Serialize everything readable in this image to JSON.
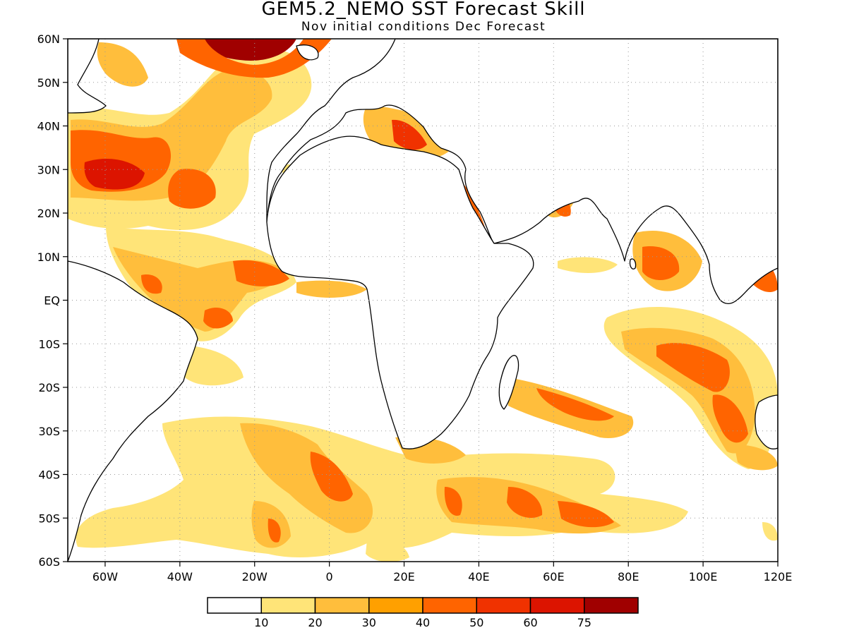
{
  "title": "GEM5.2_NEMO SST Forecast Skill",
  "subtitle": "Nov initial conditions  Dec Forecast",
  "map": {
    "lon_range": [
      -70,
      120
    ],
    "lat_range": [
      -60,
      60
    ],
    "lon_ticks": [
      "60W",
      "40W",
      "20W",
      "0",
      "20E",
      "40E",
      "60E",
      "80E",
      "100E",
      "120E"
    ],
    "lat_ticks": [
      "60N",
      "50N",
      "40N",
      "30N",
      "20N",
      "10N",
      "EQ",
      "10S",
      "20S",
      "30S",
      "40S",
      "50S",
      "60S"
    ],
    "grid": "dotted",
    "land_fill": "#ffffff",
    "coastline_color": "#000000"
  },
  "legend": {
    "levels": [
      "10",
      "20",
      "30",
      "40",
      "50",
      "60",
      "75"
    ],
    "colors": [
      "#ffffff",
      "#ffe478",
      "#ffbe3c",
      "#ffa000",
      "#ff6400",
      "#f03200",
      "#dc1400",
      "#a00000"
    ]
  }
}
